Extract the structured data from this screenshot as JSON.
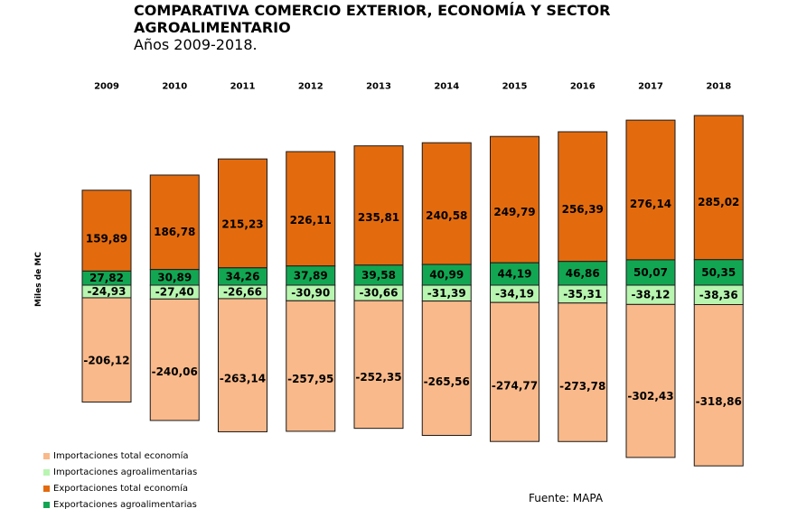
{
  "chart_data": {
    "type": "bar",
    "stacked": true,
    "title": "COMPARATIVA COMERCIO EXTERIOR, ECONOMÍA Y SECTOR AGROALIMENTARIO",
    "subtitle": "Años 2009-2018.",
    "ylabel": "Miles de MC",
    "source": "Fuente: MAPA",
    "categories": [
      "2009",
      "2010",
      "2011",
      "2012",
      "2013",
      "2014",
      "2015",
      "2016",
      "2017",
      "2018"
    ],
    "series": [
      {
        "name": "Importaciones total economía",
        "color": "#f9b98a",
        "values": [
          -206.12,
          -240.06,
          -263.14,
          -257.95,
          -252.35,
          -265.56,
          -274.77,
          -273.78,
          -302.43,
          -318.86
        ],
        "labels": [
          "-206,12",
          "-240,06",
          "-263,14",
          "-257,95",
          "-252,35",
          "-265,56",
          "-274,77",
          "-273,78",
          "-302,43",
          "-318,86"
        ]
      },
      {
        "name": "Importaciones agroalimentarias",
        "color": "#b8f5b0",
        "values": [
          -24.93,
          -27.4,
          -26.66,
          -30.9,
          -30.66,
          -31.39,
          -34.19,
          -35.31,
          -38.12,
          -38.36
        ],
        "labels": [
          "-24,93",
          "-27,40",
          "-26,66",
          "-30,90",
          "-30,66",
          "-31,39",
          "-34,19",
          "-35,31",
          "-38,12",
          "-38,36"
        ]
      },
      {
        "name": "Exportaciones total economía",
        "color": "#e36b0e",
        "values": [
          159.89,
          186.78,
          215.23,
          226.11,
          235.81,
          240.58,
          249.79,
          256.39,
          276.14,
          285.02
        ],
        "labels": [
          "159,89",
          "186,78",
          "215,23",
          "226,11",
          "235,81",
          "240,58",
          "249,79",
          "256,39",
          "276,14",
          "285,02"
        ]
      },
      {
        "name": "Exportaciones agroalimentarias",
        "color": "#12a653",
        "values": [
          27.82,
          30.89,
          34.26,
          37.89,
          39.58,
          40.99,
          44.19,
          46.86,
          50.07,
          50.35
        ],
        "labels": [
          "27,82",
          "30,89",
          "34,26",
          "37,89",
          "39,58",
          "40,99",
          "44,19",
          "46,86",
          "50,07",
          "50,35"
        ]
      }
    ],
    "legend_position": "bottom-left",
    "grid": false
  }
}
